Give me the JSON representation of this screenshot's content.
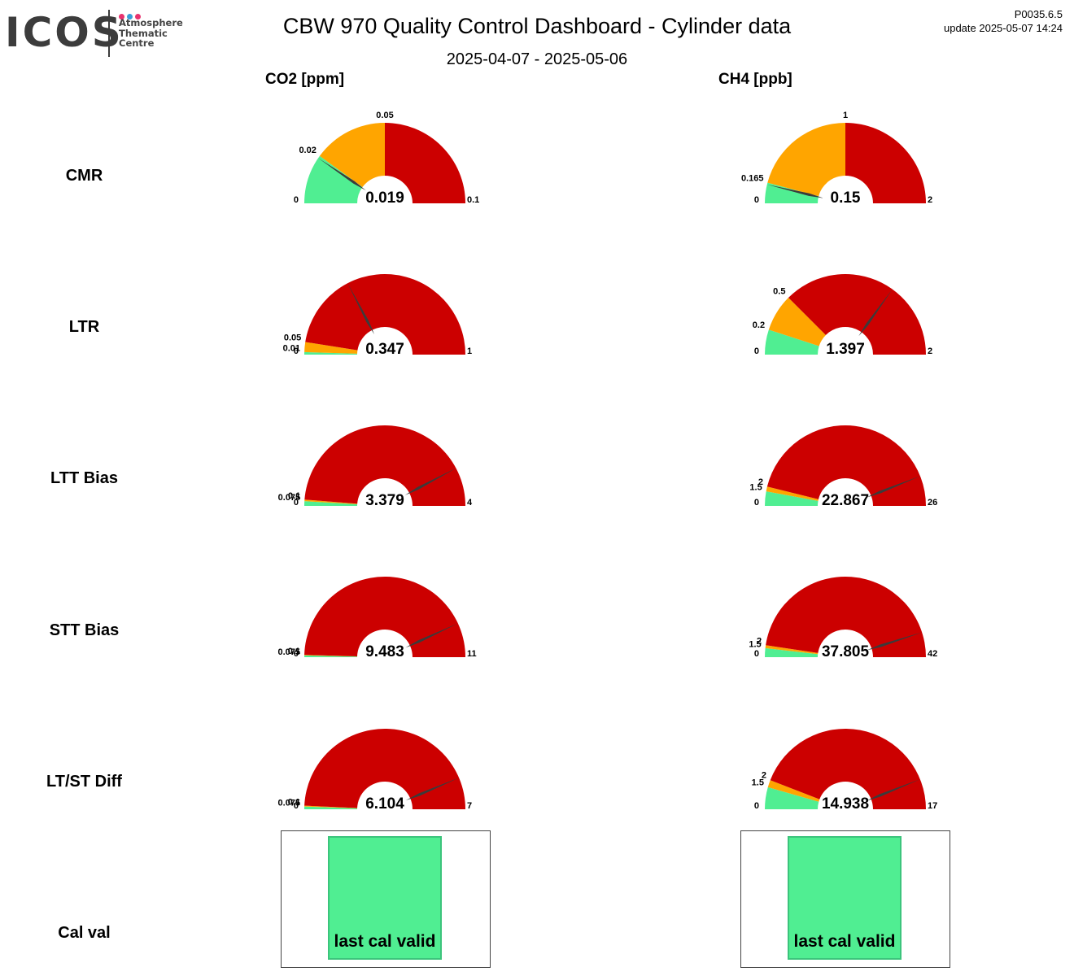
{
  "header": {
    "logo": {
      "wordmark": "ICOS",
      "subtitle": [
        "Atmosphere",
        "Thematic",
        "Centre"
      ],
      "dot_colors": [
        "#e8336f",
        "#3aa0d8",
        "#e8336f"
      ]
    },
    "title": "CBW 970 Quality Control Dashboard - Cylinder data",
    "date_range": "2025-04-07 - 2025-05-06",
    "version": "P0035.6.5",
    "update": "update  2025-05-07 14:24"
  },
  "columns": [
    "CO2 [ppm]",
    "CH4 [ppb]"
  ],
  "rows": [
    "CMR",
    "LTR",
    "LTT Bias",
    "STT Bias",
    "LT/ST Diff",
    "Cal val"
  ],
  "colors": {
    "good": "#50ee92",
    "warn": "#ffa500",
    "bad": "#cc0000",
    "needle": "#3b3b3b",
    "cal_valid": "#50ee92"
  },
  "chart_data": [
    {
      "type": "gauge",
      "row": "CMR",
      "column": "CO2 [ppm]",
      "value": 0.019,
      "value_label": "0.019",
      "min": 0,
      "max": 0.1,
      "min_label": "0",
      "max_label": "0.1",
      "thresholds": [
        0.02,
        0.05
      ],
      "threshold_labels": [
        "0.02",
        "0.05"
      ]
    },
    {
      "type": "gauge",
      "row": "CMR",
      "column": "CH4 [ppb]",
      "value": 0.15,
      "value_label": "0.15",
      "min": 0,
      "max": 2,
      "min_label": "0",
      "max_label": "2",
      "thresholds": [
        0.165,
        1
      ],
      "threshold_labels": [
        "0.165",
        "1"
      ]
    },
    {
      "type": "gauge",
      "row": "LTR",
      "column": "CO2 [ppm]",
      "value": 0.347,
      "value_label": "0.347",
      "min": 0,
      "max": 1,
      "min_label": "0",
      "max_label": "1",
      "thresholds": [
        0.01,
        0.05
      ],
      "threshold_labels": [
        "0.01",
        "0.05"
      ]
    },
    {
      "type": "gauge",
      "row": "LTR",
      "column": "CH4 [ppb]",
      "value": 1.397,
      "value_label": "1.397",
      "min": 0,
      "max": 2,
      "min_label": "0",
      "max_label": "2",
      "thresholds": [
        0.2,
        0.5
      ],
      "threshold_labels": [
        "0.2",
        "0.5"
      ]
    },
    {
      "type": "gauge",
      "row": "LTT Bias",
      "column": "CO2 [ppm]",
      "value": 3.379,
      "value_label": "3.379",
      "min": 0,
      "max": 4,
      "min_label": "0",
      "max_label": "4",
      "thresholds": [
        0.075,
        0.1
      ],
      "threshold_labels": [
        "0.075",
        "0.1"
      ]
    },
    {
      "type": "gauge",
      "row": "LTT Bias",
      "column": "CH4 [ppb]",
      "value": 22.867,
      "value_label": "22.867",
      "min": 0,
      "max": 26,
      "min_label": "0",
      "max_label": "26",
      "thresholds": [
        1.5,
        2
      ],
      "threshold_labels": [
        "1.5",
        "2"
      ]
    },
    {
      "type": "gauge",
      "row": "STT Bias",
      "column": "CO2 [ppm]",
      "value": 9.483,
      "value_label": "9.483",
      "min": 0,
      "max": 11,
      "min_label": "0",
      "max_label": "11",
      "thresholds": [
        0.075,
        0.1
      ],
      "threshold_labels": [
        "0.075",
        "0.1"
      ]
    },
    {
      "type": "gauge",
      "row": "STT Bias",
      "column": "CH4 [ppb]",
      "value": 37.805,
      "value_label": "37.805",
      "min": 0,
      "max": 42,
      "min_label": "0",
      "max_label": "42",
      "thresholds": [
        1.5,
        2
      ],
      "threshold_labels": [
        "1.5",
        "2"
      ]
    },
    {
      "type": "gauge",
      "row": "LT/ST Diff",
      "column": "CO2 [ppm]",
      "value": 6.104,
      "value_label": "6.104",
      "min": 0,
      "max": 7,
      "min_label": "0",
      "max_label": "7",
      "thresholds": [
        0.075,
        0.1
      ],
      "threshold_labels": [
        "0.075",
        "0.1"
      ]
    },
    {
      "type": "gauge",
      "row": "LT/ST Diff",
      "column": "CH4 [ppb]",
      "value": 14.938,
      "value_label": "14.938",
      "min": 0,
      "max": 17,
      "min_label": "0",
      "max_label": "17",
      "thresholds": [
        1.5,
        2
      ],
      "threshold_labels": [
        "1.5",
        "2"
      ]
    }
  ],
  "cal_val": [
    {
      "column": "CO2 [ppm]",
      "status": "last cal valid"
    },
    {
      "column": "CH4 [ppb]",
      "status": "last cal valid"
    }
  ]
}
